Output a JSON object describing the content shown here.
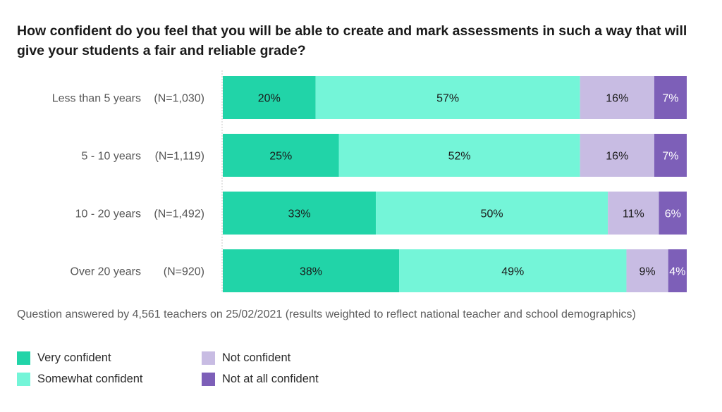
{
  "chart_data": {
    "type": "bar",
    "orientation": "horizontal",
    "stacked": true,
    "title": "How confident do you feel that you will be able to create and mark assessments in such a way that will give your students a fair and reliable grade?",
    "categories": [
      {
        "label": "Less than 5 years",
        "n": "(N=1,030)"
      },
      {
        "label": "5 - 10 years",
        "n": "(N=1,119)"
      },
      {
        "label": "10 - 20 years",
        "n": "(N=1,492)"
      },
      {
        "label": "Over 20 years",
        "n": "(N=920)"
      }
    ],
    "series": [
      {
        "name": "Very confident",
        "color": "#21d4a8",
        "text_color": "#1a1a1a",
        "values": [
          20,
          25,
          33,
          38
        ]
      },
      {
        "name": "Somewhat confident",
        "color": "#74f5d8",
        "text_color": "#1a1a1a",
        "values": [
          57,
          52,
          50,
          49
        ]
      },
      {
        "name": "Not confident",
        "color": "#c8bce3",
        "text_color": "#1a1a1a",
        "values": [
          16,
          16,
          11,
          9
        ]
      },
      {
        "name": "Not at all confident",
        "color": "#7d5fb8",
        "text_color": "#ffffff",
        "values": [
          7,
          7,
          6,
          4
        ]
      }
    ],
    "value_suffix": "%",
    "xlim": [
      0,
      100
    ],
    "footnote": "Question answered by 4,561 teachers on 25/02/2021 (results weighted to reflect national teacher and school demographics)"
  }
}
